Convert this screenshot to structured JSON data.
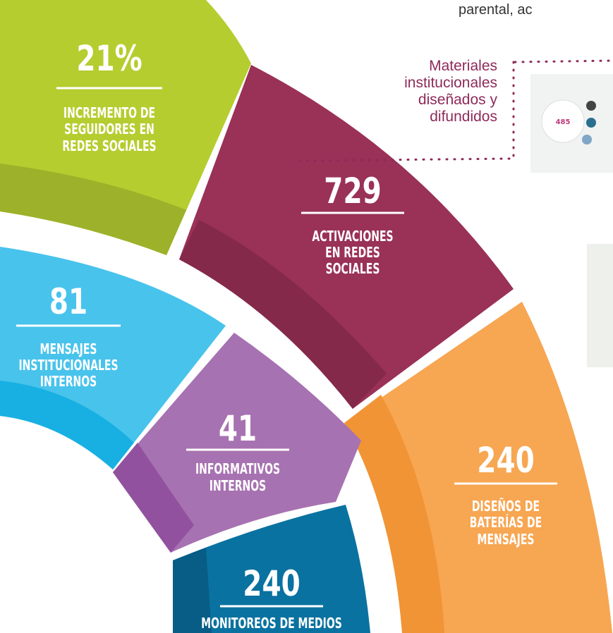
{
  "header_fragment": "parental, ac",
  "callout": {
    "lines": [
      "Materiales",
      "institucionales",
      "diseñados y",
      "difundidos"
    ]
  },
  "thumbnail_number": "485",
  "segments": [
    {
      "value": "21%",
      "label_lines": [
        "INCREMENTO DE",
        "SEGUIDORES EN",
        "REDES SOCIALES"
      ]
    },
    {
      "value": "729",
      "label_lines": [
        "ACTIVACIONES",
        "EN REDES",
        "SOCIALES"
      ]
    },
    {
      "value": "81",
      "label_lines": [
        "MENSAJES",
        "INSTITUCIONALES",
        "INTERNOS"
      ]
    },
    {
      "value": "41",
      "label_lines": [
        "INFORMATIVOS",
        "INTERNOS"
      ]
    },
    {
      "value": "240",
      "label_lines": [
        "DISEÑOS DE",
        "BATERÍAS DE",
        "MENSAJES"
      ]
    },
    {
      "value": "240",
      "label_lines": [
        "MONITOREOS DE MEDIOS"
      ]
    }
  ]
}
